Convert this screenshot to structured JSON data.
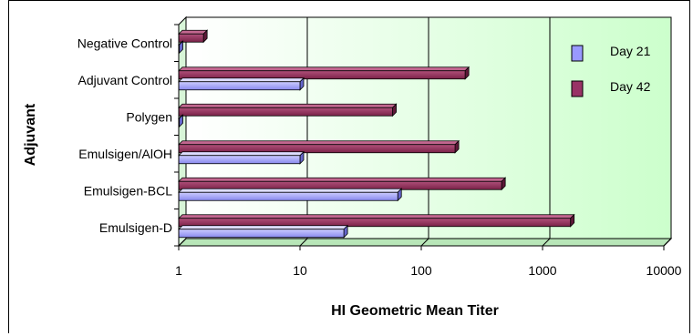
{
  "chart_data": {
    "type": "bar",
    "orientation": "horizontal",
    "xscale": "log",
    "xlim": [
      1,
      10000
    ],
    "xticks": [
      "1",
      "10",
      "100",
      "1000",
      "10000"
    ],
    "xlabel": "HI Geometric Mean Titer",
    "ylabel": "Adjuvant",
    "grid": true,
    "legend_position": "top-right",
    "categories": [
      "Negative Control",
      "Adjuvant Control",
      "Polygen",
      "Emulsigen/AlOH",
      "Emulsigen-BCL",
      "Emulsigen-D"
    ],
    "series": [
      {
        "name": "Day 21",
        "color": "#9999ff",
        "values": [
          1,
          10,
          1,
          10,
          64,
          23
        ]
      },
      {
        "name": "Day 42",
        "color": "#993366",
        "values": [
          1.6,
          230,
          58,
          190,
          460,
          1700
        ]
      }
    ],
    "colors": {
      "plot_background": "#ccffcc",
      "gridline": "#000000"
    }
  }
}
